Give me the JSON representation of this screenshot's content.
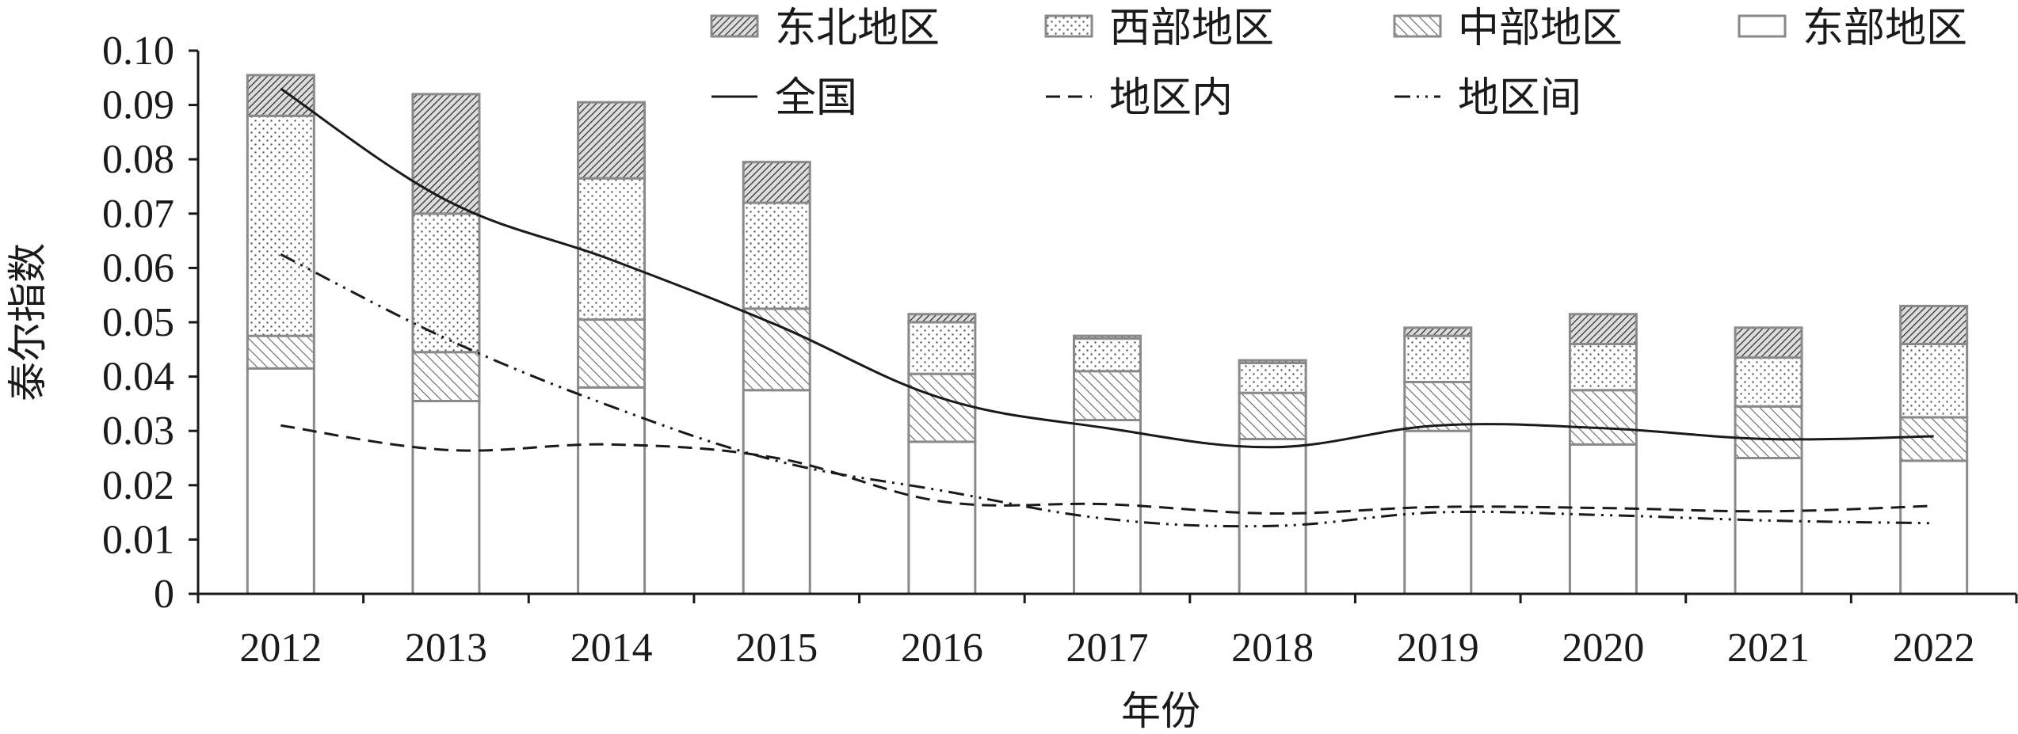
{
  "chart_data": {
    "type": "bar",
    "stacked": true,
    "xlabel": "年份",
    "ylabel": "泰尔指数",
    "ylim": [
      0,
      0.1
    ],
    "y_ticks": [
      "0",
      "0.01",
      "0.02",
      "0.03",
      "0.04",
      "0.05",
      "0.06",
      "0.07",
      "0.08",
      "0.09",
      "0.10"
    ],
    "categories": [
      "2012",
      "2013",
      "2014",
      "2015",
      "2016",
      "2017",
      "2018",
      "2019",
      "2020",
      "2021",
      "2022"
    ],
    "series": [
      {
        "name": "东部地区",
        "kind": "bar",
        "pattern": "plain",
        "values": [
          0.0415,
          0.0355,
          0.038,
          0.0375,
          0.028,
          0.032,
          0.0285,
          0.03,
          0.0275,
          0.025,
          0.0245
        ]
      },
      {
        "name": "中部地区",
        "kind": "bar",
        "pattern": "hatch",
        "values": [
          0.006,
          0.009,
          0.0125,
          0.015,
          0.0125,
          0.009,
          0.0085,
          0.009,
          0.01,
          0.0095,
          0.008
        ]
      },
      {
        "name": "西部地区",
        "kind": "bar",
        "pattern": "dots",
        "values": [
          0.0405,
          0.0255,
          0.026,
          0.0195,
          0.0095,
          0.006,
          0.0055,
          0.0085,
          0.0085,
          0.009,
          0.0135
        ]
      },
      {
        "name": "东北地区",
        "kind": "bar",
        "pattern": "dense-hatch",
        "values": [
          0.0075,
          0.022,
          0.014,
          0.0075,
          0.0015,
          0.0005,
          0.0005,
          0.0015,
          0.0055,
          0.0055,
          0.007
        ]
      },
      {
        "name": "全国",
        "kind": "line",
        "dash": "solid",
        "values": [
          0.093,
          0.0725,
          0.0615,
          0.0495,
          0.036,
          0.0305,
          0.027,
          0.031,
          0.0305,
          0.0285,
          0.029
        ]
      },
      {
        "name": "地区内",
        "kind": "line",
        "dash": "dashed",
        "values": [
          0.031,
          0.0265,
          0.0275,
          0.025,
          0.017,
          0.0165,
          0.0148,
          0.016,
          0.0158,
          0.0152,
          0.0162
        ]
      },
      {
        "name": "地区间",
        "kind": "line",
        "dash": "dash-dot-dot",
        "values": [
          0.0625,
          0.047,
          0.0345,
          0.0245,
          0.019,
          0.0138,
          0.0125,
          0.015,
          0.0145,
          0.0135,
          0.013
        ]
      }
    ],
    "legend_position": "top-right",
    "legend_order": [
      "东北地区",
      "西部地区",
      "中部地区",
      "东部地区",
      "全国",
      "地区内",
      "地区间"
    ],
    "colors": {
      "bar_stroke": "#8a8a8a",
      "line": "#1a1a1a",
      "pattern": "#555555"
    }
  }
}
